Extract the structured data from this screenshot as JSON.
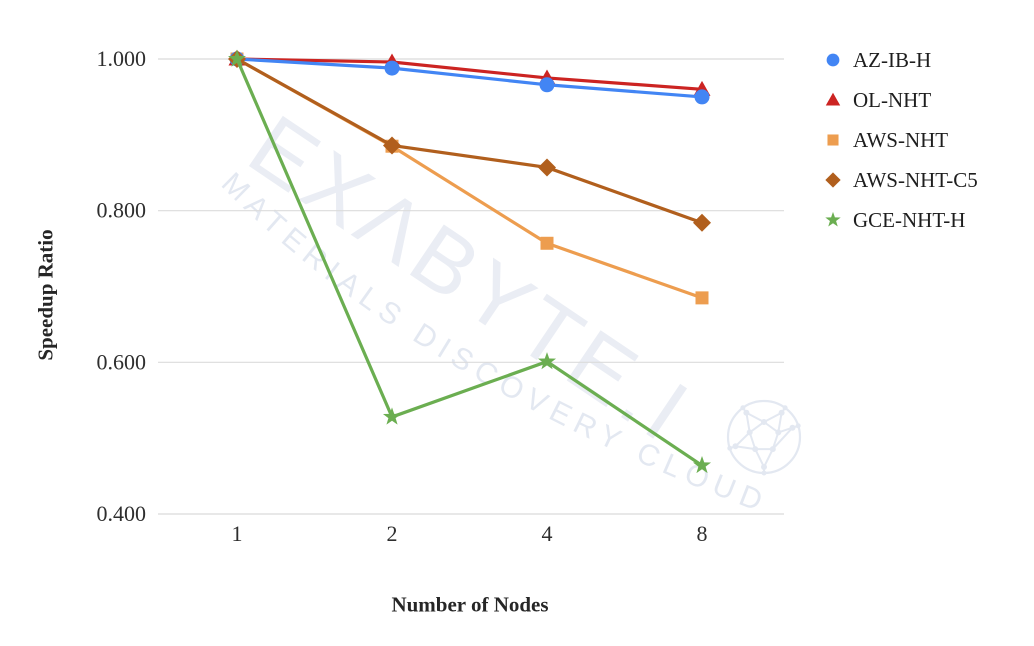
{
  "chart_data": {
    "type": "line",
    "title": "",
    "xlabel": "Number of Nodes",
    "ylabel": "Speedup Ratio",
    "x_categories": [
      "1",
      "2",
      "4",
      "8"
    ],
    "y_ticks": [
      "1.000",
      "0.800",
      "0.600",
      "0.400"
    ],
    "ylim": [
      0.4,
      1.0
    ],
    "grid": true,
    "legend_position": "right",
    "series": [
      {
        "name": "AZ-IB-H",
        "marker": "circle",
        "color": "#4285F4",
        "values": [
          1.0,
          0.988,
          0.966,
          0.95
        ]
      },
      {
        "name": "OL-NHT",
        "marker": "triangle",
        "color": "#CC2422",
        "values": [
          1.0,
          0.996,
          0.975,
          0.96
        ]
      },
      {
        "name": "AWS-NHT",
        "marker": "square",
        "color": "#ED9D4F",
        "values": [
          1.0,
          0.885,
          0.757,
          0.685
        ]
      },
      {
        "name": "AWS-NHT-C5",
        "marker": "diamond",
        "color": "#B15F1D",
        "values": [
          1.0,
          0.886,
          0.857,
          0.784
        ]
      },
      {
        "name": "GCE-NHT-H",
        "marker": "star",
        "color": "#6BAE51",
        "values": [
          1.0,
          0.528,
          0.601,
          0.464
        ]
      }
    ],
    "watermark": {
      "line1": "EXΛBYTE.I",
      "line2": "MATERIALS DISCOVERY CLOUD"
    }
  }
}
